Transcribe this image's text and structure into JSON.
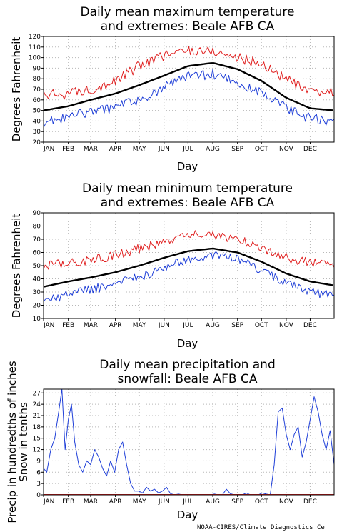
{
  "credit": "NOAA-CIRES/Climate Diagnostics Ce",
  "colors": {
    "max": "#e02020",
    "min": "#1f3fd8",
    "mean": "#000000",
    "precip": "#1f3fd8",
    "snow": "#e02020"
  },
  "chart_data": [
    {
      "type": "line",
      "title_lines": [
        "Daily mean maximum temperature",
        "and extremes: Beale AFB CA"
      ],
      "xlabel": "Day",
      "ylabel": "Degrees Fahrenheit",
      "ylim": [
        20,
        120
      ],
      "yticks": [
        20,
        30,
        40,
        50,
        60,
        70,
        80,
        90,
        100,
        110,
        120
      ],
      "months": [
        "JAN",
        "FEB",
        "MAR",
        "APR",
        "MAY",
        "JUN",
        "JUL",
        "AUG",
        "SEP",
        "OCT",
        "NOV",
        "DEC"
      ],
      "grid": true,
      "series": [
        {
          "role": "max",
          "x": [
            1,
            32,
            60,
            91,
            121,
            152,
            182,
            213,
            244,
            274,
            305,
            335,
            365
          ],
          "values": [
            64,
            66,
            70,
            78,
            92,
            102,
            107,
            106,
            100,
            94,
            80,
            66,
            68
          ]
        },
        {
          "role": "mean",
          "x": [
            1,
            32,
            60,
            91,
            121,
            152,
            182,
            213,
            244,
            274,
            305,
            335,
            365
          ],
          "values": [
            50,
            54,
            60,
            66,
            74,
            83,
            92,
            95,
            89,
            78,
            62,
            52,
            50
          ]
        },
        {
          "role": "min",
          "x": [
            1,
            32,
            60,
            91,
            121,
            152,
            182,
            213,
            244,
            274,
            305,
            335,
            365
          ],
          "values": [
            38,
            44,
            48,
            53,
            60,
            72,
            82,
            84,
            76,
            66,
            52,
            42,
            40
          ]
        }
      ]
    },
    {
      "type": "line",
      "title_lines": [
        "Daily mean minimum temperature",
        "and extremes: Beale AFB CA"
      ],
      "xlabel": "Day",
      "ylabel": "Degrees Fahrenheit",
      "ylim": [
        10,
        90
      ],
      "yticks": [
        10,
        20,
        30,
        40,
        50,
        60,
        70,
        80,
        90
      ],
      "months": [
        "JAN",
        "FEB",
        "MAR",
        "APR",
        "MAY",
        "JUN",
        "JUL",
        "AUG",
        "SEP",
        "OCT",
        "NOV",
        "DEC"
      ],
      "grid": true,
      "series": [
        {
          "role": "max",
          "x": [
            1,
            32,
            60,
            91,
            121,
            152,
            182,
            213,
            244,
            274,
            305,
            335,
            365
          ],
          "values": [
            50,
            52,
            54,
            58,
            63,
            68,
            73,
            74,
            70,
            64,
            56,
            52,
            52
          ]
        },
        {
          "role": "mean",
          "x": [
            1,
            32,
            60,
            91,
            121,
            152,
            182,
            213,
            244,
            274,
            305,
            335,
            365
          ],
          "values": [
            34,
            38,
            41,
            45,
            50,
            56,
            61,
            63,
            60,
            53,
            44,
            38,
            35
          ]
        },
        {
          "role": "min",
          "x": [
            1,
            32,
            60,
            91,
            121,
            152,
            182,
            213,
            244,
            274,
            305,
            335,
            365
          ],
          "values": [
            24,
            28,
            32,
            36,
            41,
            49,
            55,
            58,
            55,
            46,
            37,
            30,
            27
          ]
        }
      ]
    },
    {
      "type": "line",
      "title_lines": [
        "Daily mean precipitation and",
        "snowfall: Beale AFB CA"
      ],
      "xlabel": "Day",
      "ylabel_lines": [
        "Precip in hundredths of inches",
        "Snow in tenths"
      ],
      "ylim": [
        0,
        28
      ],
      "yticks": [
        0,
        3,
        6,
        9,
        12,
        15,
        18,
        21,
        24,
        27
      ],
      "months": [
        "JAN",
        "FEB",
        "MAR",
        "APR",
        "MAY",
        "JUN",
        "JUL",
        "AUG",
        "SEP",
        "OCT",
        "NOV",
        "DEC"
      ],
      "grid": true,
      "series": [
        {
          "role": "precip",
          "x": [
            1,
            5,
            10,
            15,
            20,
            24,
            28,
            32,
            36,
            40,
            45,
            50,
            55,
            60,
            65,
            70,
            75,
            80,
            85,
            90,
            95,
            100,
            105,
            110,
            115,
            120,
            125,
            130,
            135,
            140,
            145,
            150,
            155,
            160,
            165,
            170,
            175,
            180,
            185,
            190,
            195,
            200,
            205,
            210,
            215,
            220,
            225,
            230,
            235,
            240,
            245,
            250,
            255,
            260,
            265,
            270,
            275,
            280,
            285,
            290,
            295,
            300,
            305,
            310,
            315,
            320,
            325,
            330,
            335,
            340,
            345,
            350,
            355,
            360,
            365
          ],
          "values": [
            7,
            6,
            12,
            15,
            22,
            28,
            12,
            20,
            24,
            14,
            8,
            6,
            9,
            8,
            12,
            10,
            7,
            5,
            9,
            6,
            12,
            14,
            8,
            3,
            1,
            1,
            0.5,
            2,
            1,
            1.5,
            0.5,
            1,
            2,
            0.3,
            0,
            0.2,
            0,
            0,
            0,
            0,
            0,
            0,
            0,
            0,
            0.2,
            0,
            0,
            1.5,
            0.3,
            0,
            0,
            0,
            0.5,
            0,
            0,
            0,
            0.5,
            0.2,
            0,
            8,
            22,
            23,
            16,
            12,
            16,
            18,
            10,
            14,
            20,
            26,
            22,
            16,
            12,
            17,
            8
          ]
        },
        {
          "role": "snow",
          "x": [
            1,
            365
          ],
          "values": [
            0,
            0
          ]
        }
      ]
    }
  ]
}
